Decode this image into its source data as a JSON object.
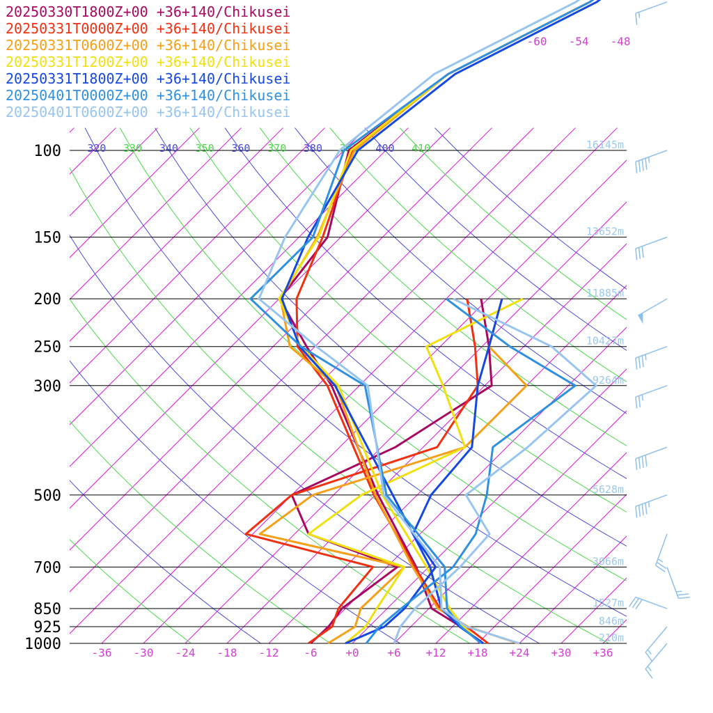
{
  "chart_data": {
    "type": "line",
    "subtype": "skew-t log-p sounding",
    "title": "",
    "xlabel": "",
    "ylabel": "",
    "legend_placement": "top-left",
    "x_range": [
      -36,
      36
    ],
    "y_range_hPa": [
      1000,
      100
    ],
    "pressure_ticks": [
      100,
      150,
      200,
      250,
      300,
      500,
      700,
      850,
      925,
      1000
    ],
    "temperature_ticks": [
      "-36",
      "-30",
      "-24",
      "-18",
      "-12",
      "-6",
      "+0",
      "+6",
      "+12",
      "+18",
      "+24",
      "+30",
      "+36"
    ],
    "upper_temperature_labels": [
      "-60",
      "-54",
      "-48"
    ],
    "theta_labels": [
      {
        "text": "320",
        "color": "#4a4ad8"
      },
      {
        "text": "330",
        "color": "#49d849"
      },
      {
        "text": "340",
        "color": "#4a4ad8"
      },
      {
        "text": "350",
        "color": "#49d849"
      },
      {
        "text": "360",
        "color": "#4a4ad8"
      },
      {
        "text": "370",
        "color": "#49d849"
      },
      {
        "text": "380",
        "color": "#4a4ad8"
      },
      {
        "text": "390",
        "color": "#49d849"
      },
      {
        "text": "400",
        "color": "#4a4ad8"
      },
      {
        "text": "410",
        "color": "#49d849"
      }
    ],
    "height_labels": [
      {
        "p": 100,
        "text": "16145m"
      },
      {
        "p": 150,
        "text": "13652m"
      },
      {
        "p": 200,
        "text": "11885m"
      },
      {
        "p": 250,
        "text": "10427m"
      },
      {
        "p": 300,
        "text": "9264m"
      },
      {
        "p": 500,
        "text": "5628m"
      },
      {
        "p": 700,
        "text": "3066m"
      },
      {
        "p": 850,
        "text": "1527m"
      },
      {
        "p": 925,
        "text": "846m"
      },
      {
        "p": 1000,
        "text": "210m"
      }
    ],
    "series": [
      {
        "name": "20250330T1800Z+00 +36+140/Chikusei",
        "color": "#a8085f",
        "temperature": [
          [
            1000,
            18.8
          ],
          [
            925,
            13.2
          ],
          [
            850,
            6.4
          ],
          [
            700,
            -1.8
          ],
          [
            500,
            -17.6
          ],
          [
            300,
            -40.0
          ],
          [
            250,
            -49.2
          ],
          [
            200,
            -59.9
          ],
          [
            150,
            -61.9
          ],
          [
            100,
            -71.3
          ],
          [
            70,
            -68
          ],
          [
            50,
            -58
          ],
          [
            30,
            -52
          ],
          [
            20,
            -48
          ]
        ],
        "dewpoint": [
          [
            1000,
            -6.0
          ],
          [
            925,
            -5.8
          ],
          [
            850,
            -6.5
          ],
          [
            700,
            -4.5
          ],
          [
            600,
            -22
          ],
          [
            500,
            -30
          ],
          [
            400,
            -22
          ],
          [
            300,
            -17
          ],
          [
            250,
            -23
          ],
          [
            200,
            -31
          ]
        ]
      },
      {
        "name": "20250331T0000Z+00 +36+140/Chikusei",
        "color": "#f03010",
        "temperature": [
          [
            1000,
            19.5
          ],
          [
            925,
            14.0
          ],
          [
            850,
            7.6
          ],
          [
            700,
            -2.0
          ],
          [
            500,
            -18.2
          ],
          [
            300,
            -40.6
          ],
          [
            250,
            -50.5
          ],
          [
            200,
            -57.5
          ],
          [
            150,
            -62.6
          ],
          [
            100,
            -70.8
          ],
          [
            70,
            -68
          ],
          [
            50,
            -58
          ],
          [
            30,
            -52
          ],
          [
            20,
            -48
          ]
        ],
        "dewpoint": [
          [
            1000,
            -6.3
          ],
          [
            925,
            -5.3
          ],
          [
            850,
            -7.0
          ],
          [
            700,
            -8.0
          ],
          [
            600,
            -31
          ],
          [
            500,
            -30
          ],
          [
            400,
            -16
          ],
          [
            300,
            -19
          ],
          [
            250,
            -25
          ],
          [
            200,
            -33
          ]
        ]
      },
      {
        "name": "20250331T0600Z+00 +36+140/Chikusei",
        "color": "#f4a018",
        "temperature": [
          [
            1000,
            23.8
          ],
          [
            925,
            14.2
          ],
          [
            850,
            7.3
          ],
          [
            700,
            -2.3
          ],
          [
            500,
            -18.0
          ],
          [
            300,
            -39.4
          ],
          [
            250,
            -51.6
          ],
          [
            200,
            -59.8
          ],
          [
            150,
            -63.4
          ],
          [
            100,
            -70.5
          ],
          [
            70,
            -68
          ],
          [
            50,
            -58
          ],
          [
            30,
            -52
          ],
          [
            20,
            -48
          ]
        ],
        "dewpoint": [
          [
            1000,
            -3.5
          ],
          [
            925,
            -2.0
          ],
          [
            850,
            -3.8
          ],
          [
            700,
            -3.5
          ],
          [
            600,
            -29
          ],
          [
            500,
            -27
          ],
          [
            400,
            -12
          ],
          [
            300,
            -12
          ],
          [
            250,
            -23
          ],
          [
            200,
            -28
          ]
        ]
      },
      {
        "name": "20250331T1200Z+00 +36+140/Chikusei",
        "color": "#f0e010",
        "temperature": [
          [
            1000,
            18.5
          ],
          [
            925,
            13.6
          ],
          [
            850,
            9.0
          ],
          [
            700,
            -0.3
          ],
          [
            500,
            -17.0
          ],
          [
            300,
            -39.0
          ],
          [
            250,
            -50.0
          ],
          [
            200,
            -60.0
          ],
          [
            150,
            -63.2
          ],
          [
            100,
            -71.0
          ],
          [
            70,
            -68
          ],
          [
            50,
            -58
          ],
          [
            30,
            -52
          ],
          [
            20,
            -48
          ]
        ],
        "dewpoint": [
          [
            1000,
            -1.0
          ],
          [
            925,
            -0.5
          ],
          [
            850,
            -1.5
          ],
          [
            700,
            -3.5
          ],
          [
            600,
            -22
          ],
          [
            500,
            -20
          ],
          [
            400,
            -12
          ],
          [
            300,
            -24
          ],
          [
            250,
            -32
          ],
          [
            200,
            -25
          ]
        ]
      },
      {
        "name": "20250331T1800Z+00 +36+140/Chikusei",
        "color": "#1448e0",
        "temperature": [
          [
            1000,
            18.8
          ],
          [
            925,
            13.0
          ],
          [
            850,
            7.8
          ],
          [
            700,
            0.2
          ],
          [
            500,
            -15.5
          ],
          [
            300,
            -39.5
          ],
          [
            250,
            -50.2
          ],
          [
            200,
            -59.6
          ],
          [
            150,
            -64.7
          ],
          [
            100,
            -70.0
          ],
          [
            70,
            -67
          ],
          [
            50,
            -57
          ],
          [
            30,
            -52
          ],
          [
            20,
            -48
          ]
        ],
        "dewpoint": [
          [
            1000,
            -1.0
          ],
          [
            925,
            2.2
          ],
          [
            850,
            2.5
          ],
          [
            700,
            1.0
          ],
          [
            600,
            -7
          ],
          [
            500,
            -10
          ],
          [
            400,
            -11
          ],
          [
            300,
            -19
          ],
          [
            250,
            -23
          ],
          [
            200,
            -28
          ]
        ]
      },
      {
        "name": "20250401T0000Z+00 +36+140/Chikusei",
        "color": "#3090e0",
        "temperature": [
          [
            1000,
            18.5
          ],
          [
            925,
            13.2
          ],
          [
            850,
            8.6
          ],
          [
            700,
            2.3
          ],
          [
            500,
            -16.4
          ],
          [
            300,
            -35.2
          ],
          [
            250,
            -50.0
          ],
          [
            200,
            -64.1
          ],
          [
            150,
            -64.0
          ],
          [
            100,
            -72.0
          ],
          [
            70,
            -68
          ],
          [
            50,
            -58
          ],
          [
            30,
            -52
          ],
          [
            20,
            -48
          ]
        ],
        "dewpoint": [
          [
            1000,
            2.0
          ],
          [
            925,
            1.5
          ],
          [
            850,
            2.0
          ],
          [
            700,
            3.5
          ],
          [
            600,
            2
          ],
          [
            500,
            -2
          ],
          [
            400,
            -8
          ],
          [
            300,
            -5
          ],
          [
            250,
            -20
          ],
          [
            200,
            -36
          ]
        ]
      },
      {
        "name": "20250401T0600Z+00 +36+140/Chikusei",
        "color": "#98c4f0",
        "temperature": [
          [
            1000,
            24.0
          ],
          [
            925,
            14.0
          ],
          [
            850,
            7.8
          ],
          [
            700,
            1.6
          ],
          [
            500,
            -16.8
          ],
          [
            300,
            -34.8
          ],
          [
            250,
            -47.8
          ],
          [
            200,
            -62.9
          ],
          [
            150,
            -68.0
          ],
          [
            100,
            -72.6
          ],
          [
            70,
            -70
          ],
          [
            50,
            -60
          ],
          [
            30,
            -54
          ],
          [
            20,
            -50
          ]
        ],
        "dewpoint": [
          [
            1000,
            6.0
          ],
          [
            925,
            4.5
          ],
          [
            850,
            4.0
          ],
          [
            700,
            4.5
          ],
          [
            600,
            4
          ],
          [
            500,
            -5
          ],
          [
            400,
            -3
          ],
          [
            300,
            -2
          ],
          [
            250,
            -14
          ],
          [
            200,
            -35
          ]
        ]
      }
    ],
    "wind_barbs": [
      {
        "p": 20,
        "dir": 250,
        "speed_kt": 15
      },
      {
        "p": 50,
        "dir": 250,
        "speed_kt": 15
      },
      {
        "p": 100,
        "dir": 250,
        "speed_kt": 45
      },
      {
        "p": 150,
        "dir": 250,
        "speed_kt": 30
      },
      {
        "p": 200,
        "dir": 240,
        "speed_kt": 50
      },
      {
        "p": 250,
        "dir": 250,
        "speed_kt": 35
      },
      {
        "p": 300,
        "dir": 250,
        "speed_kt": 25
      },
      {
        "p": 400,
        "dir": 250,
        "speed_kt": 40
      },
      {
        "p": 500,
        "dir": 250,
        "speed_kt": 45
      },
      {
        "p": 600,
        "dir": 200,
        "speed_kt": 25
      },
      {
        "p": 700,
        "dir": 160,
        "speed_kt": 25
      },
      {
        "p": 850,
        "dir": 290,
        "speed_kt": 30
      },
      {
        "p": 925,
        "dir": 220,
        "speed_kt": 15
      },
      {
        "p": 1000,
        "dir": 220,
        "speed_kt": 15
      }
    ],
    "colors": {
      "isobar": "#000000",
      "isotherm": "#d818d8",
      "theta_a": "#4a4ad8",
      "theta_b": "#49d849",
      "tick_label": "#d040d0",
      "pressure_label": "#000000",
      "height_label": "#9cc8ec",
      "wind_barb": "#8ec0ec"
    }
  }
}
